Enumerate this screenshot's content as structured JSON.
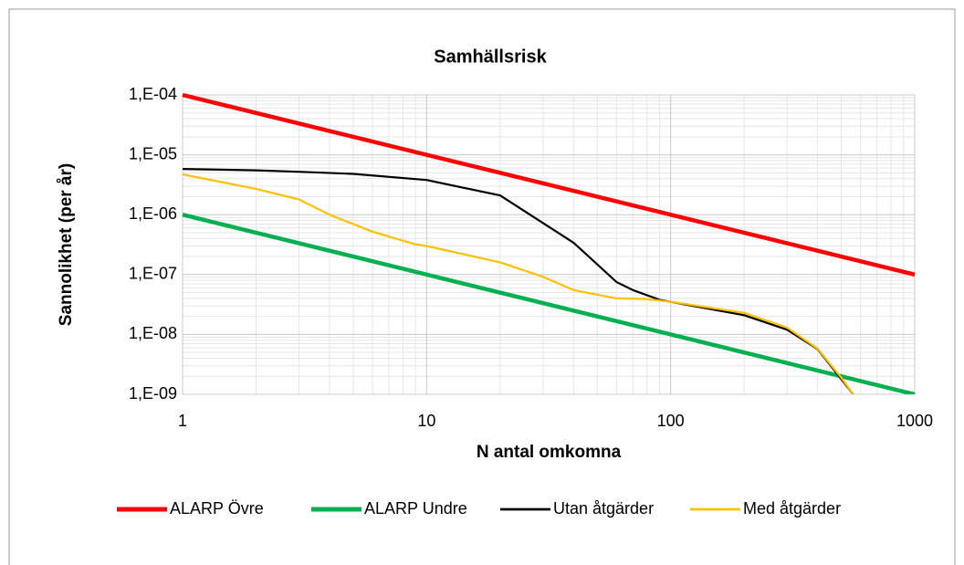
{
  "chart_data": {
    "type": "line",
    "title": "Samhällsrisk",
    "x_label": "N antal omkomna",
    "y_label": "Sannolikhet (per år)",
    "xlog": true,
    "ylog": true,
    "grid": true,
    "minor_grid": true,
    "legend": "bottom",
    "xlim": [
      1,
      1000
    ],
    "xticks": [
      1,
      10,
      100,
      1000
    ],
    "ylim": [
      1e-09,
      0.0001
    ],
    "yticks": [
      {
        "value": 1e-09,
        "label": "1,E-09"
      },
      {
        "value": 1e-08,
        "label": "1,E-08"
      },
      {
        "value": 1e-07,
        "label": "1,E-07"
      },
      {
        "value": 1e-06,
        "label": "1,E-06"
      },
      {
        "value": 1e-05,
        "label": "1,E-05"
      },
      {
        "value": 0.0001,
        "label": "1,E-04"
      }
    ],
    "series": [
      {
        "name": "ALARP Övre",
        "color": "#ff0000",
        "x": [
          1,
          1000
        ],
        "values": [
          0.0001,
          1e-07
        ]
      },
      {
        "name": "ALARP Undre",
        "color": "#00b050",
        "x": [
          1,
          1000
        ],
        "values": [
          1e-06,
          1e-09
        ]
      },
      {
        "name": "Utan åtgärder",
        "color": "#000000",
        "x": [
          1,
          2,
          3,
          5,
          10,
          20,
          40,
          60,
          70,
          90,
          100,
          200,
          300,
          400,
          500,
          560
        ],
        "values": [
          5.8e-06,
          5.5e-06,
          5.2e-06,
          4.8e-06,
          3.8e-06,
          2.1e-06,
          3.4e-07,
          7.5e-08,
          5.5e-08,
          3.8e-08,
          3.5e-08,
          2.1e-08,
          1.2e-08,
          5.7e-09,
          1.8e-09,
          1e-09
        ]
      },
      {
        "name": "Med åtgärder",
        "color": "#ffc000",
        "x": [
          1,
          2,
          3,
          4,
          6,
          9,
          10,
          20,
          30,
          40,
          60,
          80,
          100,
          200,
          300,
          400,
          500,
          560
        ],
        "values": [
          4.7e-06,
          2.7e-06,
          1.8e-06,
          1e-06,
          5.2e-07,
          3.2e-07,
          3e-07,
          1.6e-07,
          9.2e-08,
          5.5e-08,
          4e-08,
          3.9e-08,
          3.5e-08,
          2.3e-08,
          1.3e-08,
          5.8e-09,
          1.9e-09,
          1e-09
        ]
      }
    ]
  }
}
